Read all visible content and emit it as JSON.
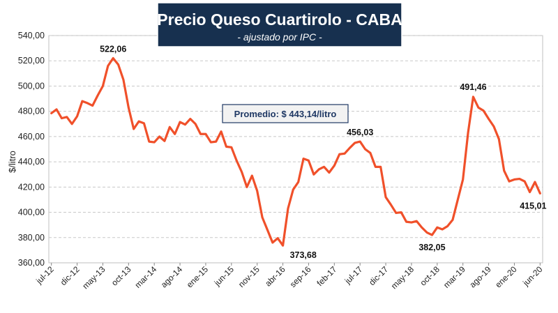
{
  "chart_data": {
    "type": "line",
    "title": "Precio Queso Cuartirolo - CABA",
    "subtitle": "- ajustado por IPC -",
    "ylabel": "$/litro",
    "xlabel": "",
    "ylim": [
      360,
      540
    ],
    "yticks": [
      "360,00",
      "380,00",
      "400,00",
      "420,00",
      "440,00",
      "460,00",
      "480,00",
      "500,00",
      "520,00",
      "540,00"
    ],
    "x_tick_labels": [
      "jul-12",
      "dic-12",
      "may-13",
      "oct-13",
      "mar-14",
      "ago-14",
      "ene-15",
      "jun-15",
      "nov-15",
      "abr-16",
      "sep-16",
      "feb-17",
      "jul-17",
      "dic-17",
      "may-18",
      "oct-18",
      "mar-19",
      "ago-19",
      "ene-20",
      "jun-20"
    ],
    "x_start": "jul-12",
    "x_end": "jun-20",
    "series": [
      {
        "name": "Precio Queso Cuartirolo",
        "color": "#f0502a",
        "values": [
          478.5,
          481.5,
          474.5,
          475.5,
          470,
          476,
          488,
          486.5,
          484.5,
          492.5,
          500,
          516,
          522.06,
          517,
          505,
          483,
          466,
          472,
          470.5,
          456,
          455.5,
          460,
          456.5,
          467.5,
          462,
          471.5,
          469.5,
          474,
          470,
          462,
          462,
          455.5,
          456,
          464,
          452,
          451.5,
          441,
          432,
          420,
          429,
          417,
          396,
          386,
          376,
          379.5,
          373.68,
          403,
          418,
          424,
          442.5,
          441,
          430,
          434,
          436,
          431.5,
          437,
          446,
          446.5,
          451,
          455,
          456.03,
          450,
          447,
          436,
          436,
          412,
          406,
          399.5,
          400,
          392.5,
          392,
          393,
          388,
          384,
          382.05,
          388,
          386.5,
          389,
          394,
          410,
          426,
          463,
          491.46,
          483,
          480.5,
          474,
          468,
          458,
          433,
          424.5,
          426,
          426.5,
          424.5,
          416,
          424,
          415.01
        ]
      }
    ],
    "annotations": [
      {
        "label": "522,06",
        "index": 12
      },
      {
        "label": "373,68",
        "index": 45
      },
      {
        "label": "456,03",
        "index": 60
      },
      {
        "label": "382,05",
        "index": 74
      },
      {
        "label": "491,46",
        "index": 82
      },
      {
        "label": "415,01",
        "index": 95
      }
    ],
    "average_label": "Promedio: $ 443,14/litro",
    "average_value": 443.14
  }
}
